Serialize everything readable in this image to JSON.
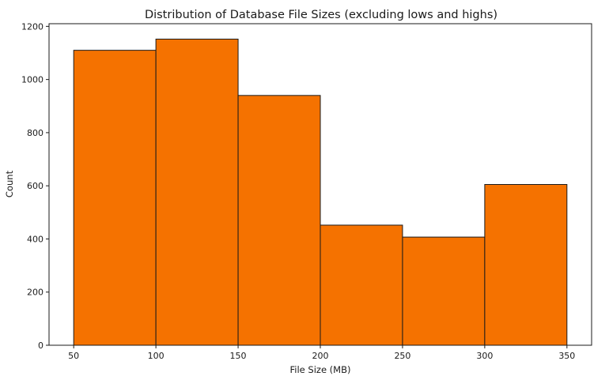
{
  "chart_data": {
    "type": "bar",
    "title": "Distribution of Database File Sizes (excluding lows and highs)",
    "xlabel": "File Size (MB)",
    "ylabel": "Count",
    "bins": [
      {
        "start": 50,
        "end": 100,
        "value": 1110
      },
      {
        "start": 100,
        "end": 150,
        "value": 1152
      },
      {
        "start": 150,
        "end": 200,
        "value": 940
      },
      {
        "start": 200,
        "end": 250,
        "value": 452
      },
      {
        "start": 250,
        "end": 300,
        "value": 407
      },
      {
        "start": 300,
        "end": 350,
        "value": 605
      }
    ],
    "xlim": [
      35,
      365
    ],
    "ylim": [
      0,
      1210
    ],
    "xticks": [
      50,
      100,
      150,
      200,
      250,
      300,
      350
    ],
    "yticks": [
      0,
      200,
      400,
      600,
      800,
      1000,
      1200
    ],
    "bar_color": "#f57200",
    "edge_color": "#1a1a1a",
    "grid": false,
    "legend": "none"
  }
}
